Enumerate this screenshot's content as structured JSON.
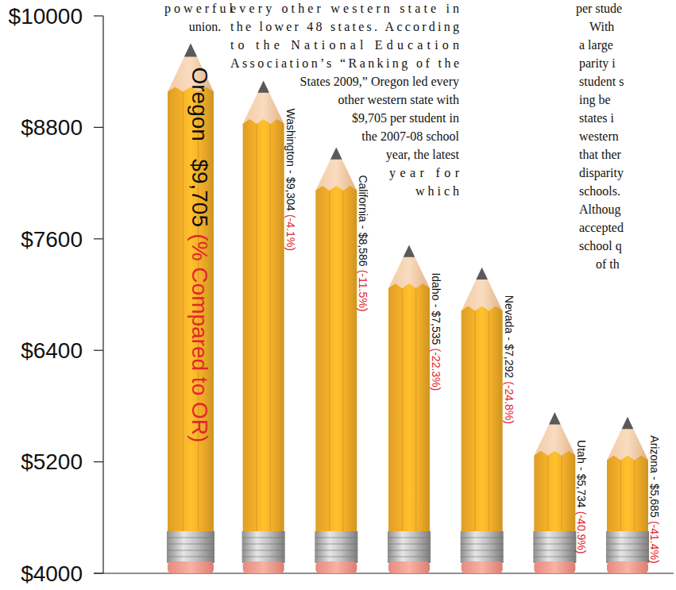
{
  "chart_data": {
    "type": "bar",
    "categories": [
      "Oregon",
      "Washington",
      "California",
      "Idaho",
      "Nevada",
      "Utah",
      "Arizona"
    ],
    "values": [
      9705,
      9304,
      8586,
      7535,
      7292,
      5734,
      5685
    ],
    "value_labels": [
      "$9,705",
      "$9,304",
      "$8,586",
      "$7,535",
      "$7,292",
      "$5,734",
      "$5,685"
    ],
    "separators": [
      null,
      "-",
      "-",
      "-",
      "-",
      "-",
      "-"
    ],
    "comparison_labels": [
      "(% Compared to OR)",
      "(-4.1%)",
      "(-11.5%)",
      "(-22.3%)",
      "(-24.8%)",
      "(-40.9%)",
      "(-41.4%)"
    ],
    "color": "#f5b029",
    "data_labels": true,
    "grid": false,
    "ylim": [
      4000,
      10000
    ],
    "yticks": [
      {
        "value": 4000,
        "label": "$4000"
      },
      {
        "value": 5200,
        "label": "$5200"
      },
      {
        "value": 6400,
        "label": "$6400"
      },
      {
        "value": 7600,
        "label": "$7600"
      },
      {
        "value": 8800,
        "label": "$8800"
      },
      {
        "value": 10000,
        "label": "$10000"
      }
    ],
    "annotations": [
      [
        "p o w e r f u l",
        "union."
      ],
      [
        "every other western state in",
        "the lower 48 states. According",
        "to the National Education",
        "Association’s “Ranking of the",
        "States 2009,” Oregon led every",
        "other western state with",
        "$9,705 per student in",
        "the 2007-08 school",
        "year, the latest",
        "year for",
        "w h i c h"
      ],
      [
        "per stude",
        "With",
        "a large",
        "parity i",
        "student s",
        "ing be",
        "states i",
        "western",
        "that ther",
        "disparity",
        "schools.",
        "Althoug",
        "accepted",
        "school q",
        "of th"
      ]
    ]
  }
}
